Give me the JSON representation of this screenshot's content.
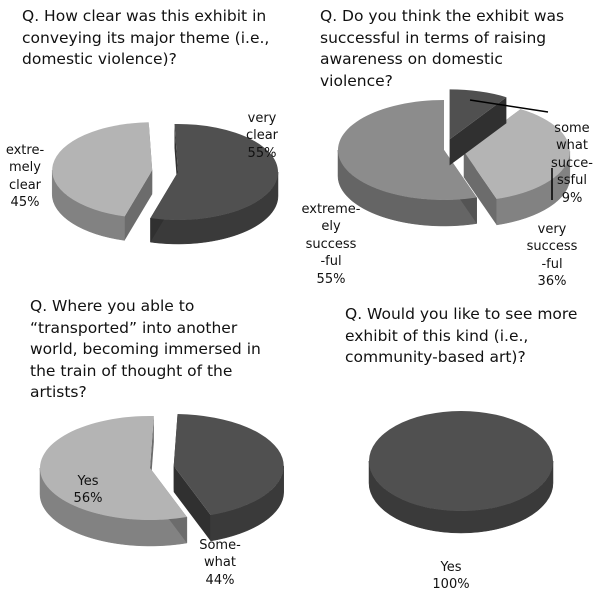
{
  "chart_data": [
    {
      "type": "pie",
      "title": "Q. How clear was this exhibit in\nconveying its major theme (i.e.,\ndomestic violence)?",
      "slices": [
        {
          "label": "very\nclear",
          "value": 55,
          "value_text": "55%",
          "color": "#505050",
          "exploded": false
        },
        {
          "label": "extre-\nmely\nclear",
          "value": 45,
          "value_text": "45%",
          "color": "#b4b4b4",
          "exploded": true
        }
      ]
    },
    {
      "type": "pie",
      "title": "Q. Do you think the exhibit was\nsuccessful in terms of raising\nawareness on domestic\nviolence?",
      "slices": [
        {
          "label": "some\nwhat\nsucce-\nssful",
          "value": 9,
          "value_text": "9%",
          "color": "#505050",
          "exploded": true
        },
        {
          "label": "very\nsuccess\n-ful",
          "value": 36,
          "value_text": "36%",
          "color": "#b4b4b4",
          "exploded": true
        },
        {
          "label": "extreme-\nely\nsuccess\n-ful",
          "value": 55,
          "value_text": "55%",
          "color": "#8c8c8c",
          "exploded": false
        }
      ]
    },
    {
      "type": "pie",
      "title": "Q. Where you able to\n“transported” into another\nworld, becoming immersed in\nthe train of thought of the\nartists?",
      "slices": [
        {
          "label": "Some-\nwhat",
          "value": 44,
          "value_text": "44%",
          "color": "#505050",
          "exploded": true
        },
        {
          "label": "Yes",
          "value": 56,
          "value_text": "56%",
          "color": "#b4b4b4",
          "exploded": false
        }
      ]
    },
    {
      "type": "pie",
      "title": "Q. Would you like to see more\nexhibit of this kind (i.e.,\ncommunity-based art)?",
      "slices": [
        {
          "label": "Yes",
          "value": 100,
          "value_text": "100%",
          "color": "#505050",
          "exploded": false
        }
      ]
    }
  ]
}
